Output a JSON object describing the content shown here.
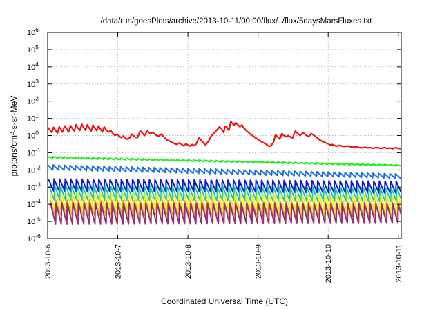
{
  "chart_data": {
    "type": "line",
    "title": "/data/run/goesPlots/archive/2013-10-11/00:00/flux/../flux/5daysMarsFluxes.txt",
    "xlabel": "Coordinated Universal Time (UTC)",
    "ylabel": {
      "base": "protons/cm",
      "sup": "2",
      "rest": "-s-sr-MeV"
    },
    "x_range": [
      "2013-10-06",
      "2013-10-11 01:00"
    ],
    "x_ticks": [
      "2013-10-6",
      "2013-10-7",
      "2013-10-8",
      "2013-10-9",
      "2013-10-10",
      "2013-10-11"
    ],
    "y_scale": "log",
    "y_range": [
      1e-06,
      1000000.0
    ],
    "y_tick_exponents": [
      -6,
      -5,
      -4,
      -3,
      -2,
      -1,
      0,
      1,
      2,
      3,
      4,
      5,
      6
    ],
    "y_tick_base": "10",
    "grid": true,
    "series": [
      {
        "color": "#ee1111",
        "width": 2.2,
        "points": [
          [
            0.0,
            3.0
          ],
          [
            0.03,
            2.2
          ],
          [
            0.06,
            1.5
          ],
          [
            0.085,
            3.0
          ],
          [
            0.11,
            2.0
          ],
          [
            0.14,
            1.4
          ],
          [
            0.165,
            3.2
          ],
          [
            0.19,
            2.2
          ],
          [
            0.21,
            1.6
          ],
          [
            0.245,
            3.6
          ],
          [
            0.27,
            2.5
          ],
          [
            0.3,
            1.6
          ],
          [
            0.325,
            3.8
          ],
          [
            0.35,
            2.6
          ],
          [
            0.38,
            1.8
          ],
          [
            0.405,
            4.2
          ],
          [
            0.43,
            2.8
          ],
          [
            0.46,
            2.0
          ],
          [
            0.485,
            4.6
          ],
          [
            0.51,
            3.0
          ],
          [
            0.54,
            2.0
          ],
          [
            0.565,
            4.2
          ],
          [
            0.59,
            2.8
          ],
          [
            0.62,
            1.8
          ],
          [
            0.645,
            4.0
          ],
          [
            0.67,
            2.8
          ],
          [
            0.7,
            1.9
          ],
          [
            0.725,
            3.6
          ],
          [
            0.75,
            2.5
          ],
          [
            0.78,
            1.6
          ],
          [
            0.805,
            3.2
          ],
          [
            0.83,
            2.2
          ],
          [
            0.87,
            1.6
          ],
          [
            0.9,
            2.0
          ],
          [
            0.93,
            1.3
          ],
          [
            0.96,
            1.0
          ],
          [
            0.99,
            1.2
          ],
          [
            1.02,
            0.9
          ],
          [
            1.05,
            0.75
          ],
          [
            1.08,
            0.95
          ],
          [
            1.11,
            0.7
          ],
          [
            1.14,
            0.6
          ],
          [
            1.17,
            0.75
          ],
          [
            1.2,
            1.2
          ],
          [
            1.22,
            1.0
          ],
          [
            1.25,
            0.8
          ],
          [
            1.28,
            0.75
          ],
          [
            1.32,
            1.9
          ],
          [
            1.35,
            1.4
          ],
          [
            1.38,
            1.0
          ],
          [
            1.42,
            1.8
          ],
          [
            1.46,
            1.3
          ],
          [
            1.5,
            1.5
          ],
          [
            1.54,
            1.1
          ],
          [
            1.58,
            0.9
          ],
          [
            1.62,
            1.2
          ],
          [
            1.66,
            0.8
          ],
          [
            1.7,
            0.55
          ],
          [
            1.75,
            0.45
          ],
          [
            1.8,
            0.35
          ],
          [
            1.84,
            0.3
          ],
          [
            1.88,
            0.38
          ],
          [
            1.91,
            0.3
          ],
          [
            1.94,
            0.25
          ],
          [
            1.97,
            0.33
          ],
          [
            2.0,
            0.28
          ],
          [
            2.03,
            0.24
          ],
          [
            2.06,
            0.3
          ],
          [
            2.09,
            0.26
          ],
          [
            2.12,
            0.33
          ],
          [
            2.16,
            0.75
          ],
          [
            2.19,
            0.52
          ],
          [
            2.22,
            0.38
          ],
          [
            2.25,
            0.28
          ],
          [
            2.29,
            0.45
          ],
          [
            2.33,
            0.9
          ],
          [
            2.37,
            1.4
          ],
          [
            2.41,
            2.0
          ],
          [
            2.45,
            3.2
          ],
          [
            2.48,
            2.4
          ],
          [
            2.51,
            1.5
          ],
          [
            2.53,
            3.5
          ],
          [
            2.555,
            3.0
          ],
          [
            2.585,
            2.0
          ],
          [
            2.61,
            6.5
          ],
          [
            2.635,
            5.0
          ],
          [
            2.66,
            4.0
          ],
          [
            2.68,
            5.5
          ],
          [
            2.71,
            4.3
          ],
          [
            2.74,
            3.2
          ],
          [
            2.77,
            4.2
          ],
          [
            2.8,
            2.6
          ],
          [
            2.84,
            1.8
          ],
          [
            2.88,
            1.3
          ],
          [
            2.92,
            1.0
          ],
          [
            2.96,
            0.75
          ],
          [
            3.0,
            0.6
          ],
          [
            3.04,
            0.45
          ],
          [
            3.08,
            0.38
          ],
          [
            3.12,
            0.3
          ],
          [
            3.16,
            0.23
          ],
          [
            3.19,
            0.28
          ],
          [
            3.22,
            0.4
          ],
          [
            3.25,
            1.1
          ],
          [
            3.28,
            0.85
          ],
          [
            3.31,
            0.62
          ],
          [
            3.34,
            1.3
          ],
          [
            3.37,
            1.0
          ],
          [
            3.4,
            0.85
          ],
          [
            3.43,
            1.0
          ],
          [
            3.46,
            0.85
          ],
          [
            3.49,
            0.7
          ],
          [
            3.53,
            1.8
          ],
          [
            3.56,
            1.4
          ],
          [
            3.6,
            1.0
          ],
          [
            3.64,
            1.5
          ],
          [
            3.68,
            1.1
          ],
          [
            3.72,
            0.85
          ],
          [
            3.76,
            1.3
          ],
          [
            3.8,
            1.0
          ],
          [
            3.84,
            0.75
          ],
          [
            3.88,
            0.55
          ],
          [
            3.92,
            0.45
          ],
          [
            3.96,
            0.38
          ],
          [
            4.0,
            0.33
          ],
          [
            4.03,
            0.28
          ],
          [
            4.06,
            0.3
          ],
          [
            4.09,
            0.26
          ],
          [
            4.12,
            0.24
          ],
          [
            4.16,
            0.27
          ],
          [
            4.2,
            0.24
          ],
          [
            4.24,
            0.23
          ],
          [
            4.28,
            0.25
          ],
          [
            4.32,
            0.22
          ],
          [
            4.36,
            0.21
          ],
          [
            4.4,
            0.23
          ],
          [
            4.44,
            0.2
          ],
          [
            4.48,
            0.19
          ],
          [
            4.52,
            0.21
          ],
          [
            4.56,
            0.19
          ],
          [
            4.6,
            0.2
          ],
          [
            4.64,
            0.18
          ],
          [
            4.68,
            0.2
          ],
          [
            4.72,
            0.19
          ],
          [
            4.76,
            0.18
          ],
          [
            4.8,
            0.2
          ],
          [
            4.84,
            0.18
          ],
          [
            4.88,
            0.19
          ],
          [
            4.92,
            0.17
          ],
          [
            4.96,
            0.2
          ],
          [
            5.0,
            0.18
          ],
          [
            5.04,
            0.17
          ]
        ]
      },
      {
        "color": "#22ee22",
        "width": 2.2,
        "sawtooth": {
          "start": 0,
          "step": 0.08,
          "n": 63,
          "top": [
            0.06,
            0.02
          ],
          "bottom": [
            0.048,
            0.017
          ]
        }
      },
      {
        "color": "#1f6fe0",
        "width": 2.0,
        "sawtooth": {
          "start": 0,
          "step": 0.08,
          "n": 63,
          "top": [
            0.02,
            0.006
          ],
          "bottom": [
            0.01,
            0.0032
          ]
        }
      },
      {
        "color": "#0a1ccc",
        "width": 2.0,
        "sawtooth": {
          "start": 0.01,
          "step": 0.08,
          "n": 63,
          "top": [
            0.003,
            0.0022
          ],
          "bottom": [
            0.0006,
            0.00045
          ]
        }
      },
      {
        "color": "#13c6b8",
        "width": 1.8,
        "sawtooth": {
          "start": 0.02,
          "step": 0.08,
          "n": 63,
          "top": [
            0.0012,
            0.0009
          ],
          "bottom": [
            0.00018,
            0.00014
          ]
        }
      },
      {
        "color": "#f0f016",
        "width": 1.8,
        "sawtooth": {
          "start": 0.03,
          "step": 0.08,
          "n": 63,
          "top": [
            0.00045,
            0.00035
          ],
          "bottom": [
            5e-05,
            4e-05
          ]
        }
      },
      {
        "color": "#e8a020",
        "width": 1.6,
        "sawtooth": {
          "start": 0.035,
          "step": 0.08,
          "n": 63,
          "top": [
            0.00018,
            0.00014
          ],
          "bottom": [
            2.2e-05,
            1.8e-05
          ]
        }
      },
      {
        "color": "#96306e",
        "width": 2.0,
        "sawtooth": {
          "start": 0.04,
          "step": 0.08,
          "n": 63,
          "top": [
            0.00012,
            0.0001
          ],
          "bottom": [
            7e-06,
            8e-06
          ]
        }
      }
    ]
  }
}
